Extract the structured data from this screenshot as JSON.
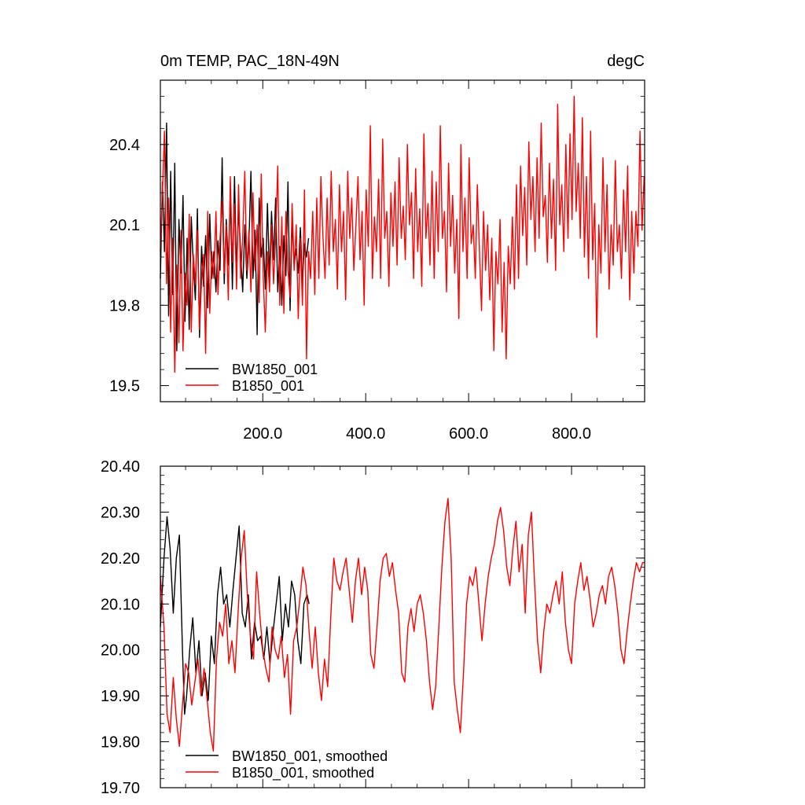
{
  "chart_data": [
    {
      "type": "line",
      "title_left": "0m TEMP, PAC_18N-49N",
      "title_right": "degC",
      "xlim": [
        1,
        942
      ],
      "ylim": [
        19.44,
        20.64
      ],
      "x_ticks": [
        200,
        400,
        600,
        800
      ],
      "x_tick_labels": [
        "200.0",
        "400.0",
        "600.0",
        "800.0"
      ],
      "y_ticks": [
        19.5,
        19.8,
        20.1,
        20.4
      ],
      "y_tick_labels": [
        "19.5",
        "19.8",
        "20.1",
        "20.4"
      ],
      "legend_position": "bottom-left",
      "series": [
        {
          "name": "BW1850_001",
          "color": "#000000",
          "x_start": 1,
          "x_step": 4,
          "values": [
            19.9,
            20.26,
            20.0,
            20.48,
            19.76,
            20.3,
            19.84,
            20.33,
            19.63,
            20.12,
            19.92,
            20.21,
            19.74,
            20.05,
            19.71,
            20.13,
            19.95,
            19.82,
            20.16,
            19.68,
            20.02,
            19.87,
            20.06,
            19.79,
            20.14,
            19.9,
            20.0,
            19.85,
            20.04,
            19.93,
            20.35,
            19.88,
            20.12,
            19.95,
            20.22,
            19.86,
            20.28,
            19.92,
            20.16,
            20.0,
            19.85,
            20.1,
            19.9,
            20.03,
            20.3,
            19.9,
            20.08,
            19.69,
            20.2,
            19.98,
            20.05,
            19.86,
            20.18,
            19.9,
            20.15,
            19.97,
            20.2,
            19.85,
            20.02,
            19.8,
            20.06,
            19.91,
            20.26,
            19.78,
            20.12,
            19.95,
            20.01,
            19.92,
            20.09,
            19.88,
            20.03,
            19.98,
            20.05
          ]
        },
        {
          "name": "B1850_001",
          "color": "#ff0000",
          "x_start": 1,
          "x_step": 4,
          "values": [
            20.0,
            20.22,
            20.45,
            19.88,
            20.2,
            19.7,
            20.05,
            19.55,
            19.95,
            19.66,
            20.08,
            19.63,
            19.92,
            19.8,
            20.14,
            19.7,
            19.99,
            19.88,
            20.08,
            19.71,
            19.89,
            19.99,
            19.62,
            20.15,
            19.77,
            20.0,
            19.9,
            20.15,
            19.84,
            20.05,
            20.19,
            19.92,
            20.1,
            19.82,
            20.28,
            19.96,
            20.18,
            19.86,
            20.25,
            19.9,
            20.05,
            20.3,
            19.93,
            20.08,
            19.85,
            20.22,
            19.93,
            20.1,
            19.81,
            20.29,
            19.9,
            19.7,
            20.0,
            19.85,
            20.1,
            19.88,
            20.05,
            20.32,
            19.8,
            20.13,
            19.77,
            20.15,
            19.93,
            19.83,
            20.18,
            19.93,
            20.1,
            19.75,
            20.05,
            19.8,
            20.23,
            19.6,
            20.0,
            19.9,
            20.15,
            19.84,
            20.2,
            19.9,
            20.28,
            20.05,
            19.9,
            20.2,
            19.95,
            20.3,
            20.0,
            20.12,
            19.86,
            20.25,
            20.0,
            20.15,
            19.82,
            20.3,
            20.05,
            20.2,
            19.93,
            20.1,
            20.28,
            19.97,
            20.15,
            19.8,
            20.23,
            20.02,
            20.47,
            19.9,
            20.13,
            20.0,
            20.27,
            19.9,
            20.42,
            20.05,
            20.15,
            19.87,
            20.22,
            20.02,
            20.26,
            19.95,
            20.35,
            20.05,
            20.17,
            19.97,
            20.4,
            20.1,
            20.22,
            19.9,
            20.31,
            20.0,
            20.16,
            19.87,
            20.44,
            20.05,
            20.18,
            19.95,
            20.3,
            19.9,
            20.26,
            20.0,
            20.47,
            20.05,
            20.15,
            19.85,
            20.33,
            20.02,
            20.21,
            19.92,
            20.12,
            19.75,
            20.4,
            20.0,
            20.2,
            19.9,
            20.35,
            20.03,
            20.1,
            19.9,
            20.25,
            20.0,
            19.78,
            20.15,
            19.93,
            20.1,
            19.82,
            20.05,
            19.63,
            20.0,
            19.88,
            20.12,
            19.7,
            19.96,
            19.6,
            20.02,
            19.88,
            20.13,
            19.86,
            20.25,
            19.9,
            20.32,
            20.06,
            20.24,
            19.95,
            20.41,
            20.12,
            20.28,
            20.0,
            20.35,
            20.05,
            20.48,
            20.13,
            20.21,
            19.96,
            20.33,
            20.05,
            20.27,
            19.93,
            20.55,
            20.1,
            20.25,
            20.0,
            20.4,
            20.05,
            20.44,
            20.12,
            20.58,
            20.15,
            20.33,
            20.05,
            20.5,
            19.98,
            20.28,
            19.9,
            20.45,
            19.97,
            20.18,
            19.68,
            20.1,
            19.92,
            20.35,
            20.0,
            20.25,
            19.86,
            20.1,
            19.95,
            20.34,
            20.0,
            20.1,
            19.9,
            20.23,
            20.0,
            20.32,
            19.82,
            20.15,
            19.92,
            20.15,
            20.02,
            20.45,
            20.08,
            20.28
          ]
        }
      ],
      "legend": [
        "BW1850_001",
        "B1850_001"
      ]
    },
    {
      "type": "line",
      "xlim": [
        1,
        942
      ],
      "ylim": [
        19.7,
        20.4
      ],
      "x_ticks": [
        200,
        400,
        600,
        800
      ],
      "y_ticks": [
        19.7,
        19.8,
        19.9,
        20.0,
        20.1,
        20.2,
        20.3,
        20.4
      ],
      "y_tick_labels": [
        "19.70",
        "19.80",
        "19.90",
        "20.00",
        "20.10",
        "20.20",
        "20.30",
        "20.40"
      ],
      "legend_position": "bottom-left",
      "series": [
        {
          "name": "BW1850_001, smoothed",
          "color": "#000000",
          "x": [
            1,
            8,
            14,
            20,
            26,
            32,
            38,
            44,
            48,
            52,
            58,
            64,
            70,
            76,
            82,
            88,
            94,
            100,
            106,
            112,
            118,
            124,
            130,
            136,
            142,
            148,
            154,
            160,
            166,
            172,
            178,
            184,
            190,
            196,
            202,
            208,
            214,
            220,
            226,
            232,
            238,
            244,
            250,
            256,
            262,
            268,
            274,
            280,
            286,
            290
          ],
          "values": [
            20.05,
            20.2,
            20.29,
            20.22,
            20.08,
            20.2,
            20.25,
            20.0,
            19.86,
            19.9,
            20.0,
            20.07,
            19.95,
            20.02,
            19.9,
            19.95,
            19.89,
            20.03,
            19.97,
            20.12,
            20.18,
            20.1,
            20.12,
            20.05,
            20.13,
            20.2,
            20.27,
            20.08,
            20.05,
            20.12,
            19.98,
            20.06,
            20.02,
            20.03,
            19.98,
            20.05,
            19.97,
            20.04,
            20.1,
            20.16,
            20.02,
            20.1,
            20.05,
            20.15,
            20.12,
            20.02,
            19.97,
            20.1,
            20.12,
            20.1
          ]
        },
        {
          "name": "B1850_001, smoothed",
          "color": "#ff0000",
          "x": [
            1,
            8,
            14,
            20,
            26,
            32,
            38,
            44,
            50,
            56,
            62,
            68,
            74,
            80,
            86,
            92,
            98,
            104,
            110,
            116,
            122,
            128,
            134,
            140,
            146,
            152,
            158,
            164,
            170,
            176,
            182,
            188,
            194,
            200,
            206,
            212,
            218,
            224,
            230,
            236,
            242,
            248,
            254,
            260,
            266,
            272,
            278,
            284,
            290,
            296,
            302,
            308,
            314,
            320,
            326,
            332,
            338,
            344,
            350,
            356,
            362,
            368,
            374,
            380,
            386,
            392,
            398,
            404,
            410,
            416,
            422,
            428,
            434,
            440,
            446,
            452,
            458,
            464,
            470,
            476,
            482,
            488,
            494,
            500,
            506,
            512,
            518,
            524,
            530,
            536,
            542,
            548,
            554,
            560,
            566,
            572,
            578,
            584,
            590,
            596,
            602,
            608,
            614,
            620,
            626,
            632,
            638,
            644,
            650,
            656,
            662,
            668,
            674,
            680,
            686,
            692,
            698,
            704,
            710,
            716,
            722,
            728,
            734,
            740,
            746,
            752,
            758,
            764,
            770,
            776,
            782,
            788,
            794,
            800,
            806,
            812,
            818,
            824,
            830,
            836,
            842,
            848,
            854,
            860,
            866,
            872,
            878,
            884,
            890,
            896,
            902,
            908,
            914,
            920,
            926,
            932,
            938,
            942
          ],
          "values": [
            20.16,
            20.05,
            19.86,
            19.82,
            19.94,
            19.85,
            19.79,
            19.88,
            19.97,
            19.95,
            19.88,
            19.93,
            19.98,
            19.9,
            19.96,
            19.89,
            19.82,
            19.78,
            19.98,
            20.06,
            20.03,
            20.1,
            19.97,
            20.02,
            19.95,
            20.08,
            20.2,
            20.26,
            20.12,
            20.03,
            19.98,
            20.17,
            20.08,
            20.0,
            19.96,
            19.93,
            20.05,
            20.0,
            19.98,
            20.03,
            19.94,
            19.99,
            19.86,
            20.02,
            20.05,
            20.11,
            20.18,
            20.14,
            20.04,
            19.96,
            20.05,
            19.95,
            19.89,
            19.98,
            19.92,
            20.07,
            20.2,
            20.15,
            20.13,
            20.17,
            20.2,
            20.13,
            20.06,
            20.15,
            20.2,
            20.12,
            20.18,
            20.13,
            19.99,
            19.96,
            20.05,
            20.15,
            20.2,
            20.21,
            20.16,
            20.19,
            20.13,
            20.08,
            19.95,
            19.93,
            20.05,
            20.09,
            20.04,
            20.1,
            20.12,
            20.08,
            20.02,
            19.93,
            19.87,
            19.92,
            20.05,
            20.18,
            20.28,
            20.33,
            20.2,
            19.93,
            19.87,
            19.82,
            19.95,
            20.1,
            20.16,
            20.14,
            20.18,
            20.1,
            20.02,
            20.1,
            20.16,
            20.2,
            20.23,
            20.28,
            20.31,
            20.26,
            20.18,
            20.14,
            20.22,
            20.28,
            20.17,
            20.23,
            20.08,
            20.25,
            20.3,
            20.15,
            20.02,
            19.95,
            20.04,
            20.1,
            20.08,
            20.12,
            20.15,
            20.1,
            20.17,
            20.06,
            20.0,
            19.97,
            20.1,
            20.15,
            20.19,
            20.13,
            20.16,
            20.11,
            20.05,
            20.08,
            20.12,
            20.14,
            20.1,
            20.16,
            20.18,
            20.14,
            20.08,
            20.0,
            19.97,
            20.04,
            20.1,
            20.15,
            20.19,
            20.17,
            20.19,
            20.19
          ]
        }
      ],
      "legend": [
        "BW1850_001, smoothed",
        "B1850_001, smoothed"
      ]
    }
  ]
}
